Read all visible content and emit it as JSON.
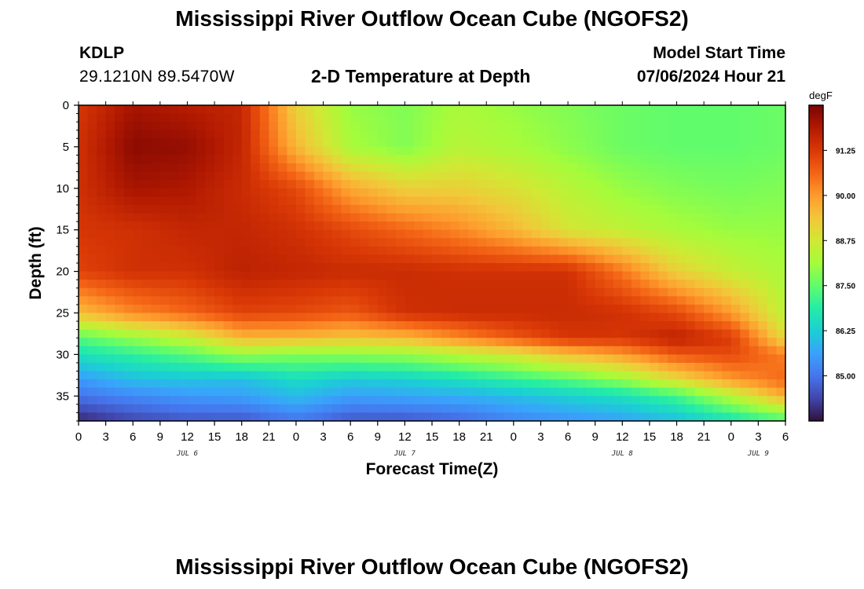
{
  "page": {
    "title": "Mississippi River Outflow Ocean Cube (NGOFS2)",
    "footer_title": "Mississippi River Outflow Ocean Cube (NGOFS2)",
    "station_id": "KDLP",
    "coordinates": "29.1210N  89.5470W",
    "subtitle": "2-D Temperature at Depth",
    "model_start_label": "Model Start Time",
    "model_start_value": "07/06/2024 Hour 21"
  },
  "chart_data": {
    "type": "heatmap",
    "title": "2-D Temperature at Depth",
    "xlabel": "Forecast Time(Z)",
    "ylabel": "Depth (ft)",
    "x_unit": "hours",
    "x_range": [
      0,
      78
    ],
    "x_ticks": [
      "0",
      "3",
      "6",
      "9",
      "12",
      "15",
      "18",
      "21",
      "0",
      "3",
      "6",
      "9",
      "12",
      "15",
      "18",
      "21",
      "0",
      "3",
      "6",
      "9",
      "12",
      "15",
      "18",
      "21",
      "0",
      "3",
      "6"
    ],
    "day_labels": [
      {
        "label": "JUL 6",
        "hour": 12
      },
      {
        "label": "JUL 7",
        "hour": 36
      },
      {
        "label": "JUL 8",
        "hour": 60
      },
      {
        "label": "JUL 9",
        "hour": 75
      }
    ],
    "y_range": [
      0,
      38
    ],
    "y_ticks": [
      0,
      5,
      10,
      15,
      20,
      25,
      30,
      35
    ],
    "y_reversed": true,
    "colorbar": {
      "unit": "degF",
      "range": [
        83.75,
        92.5
      ],
      "ticks": [
        "91.25",
        "90.00",
        "88.75",
        "87.50",
        "86.25",
        "85.00"
      ]
    },
    "grid": "off",
    "legend": "colorbar right",
    "colors": {
      "darkest": "#30123b",
      "blue": "#4465dc",
      "cyan": "#28bbec",
      "green": "#a2fc3c",
      "yellow": "#f5c63a",
      "orange": "#f56918",
      "darkred": "#7a0403"
    },
    "hours": [
      0,
      6,
      12,
      18,
      24,
      30,
      36,
      42,
      48,
      54,
      60,
      66,
      72,
      78
    ],
    "depths_ft": [
      0,
      5,
      10,
      15,
      20,
      25,
      28,
      30,
      33,
      35,
      38
    ],
    "values_degF": [
      [
        91.3,
        92.0,
        91.8,
        91.6,
        89.2,
        88.0,
        87.8,
        88.2,
        88.0,
        87.8,
        87.6,
        87.5,
        87.5,
        87.6
      ],
      [
        91.4,
        92.3,
        92.2,
        91.6,
        89.6,
        88.2,
        87.8,
        88.4,
        88.2,
        87.9,
        87.6,
        87.5,
        87.5,
        87.6
      ],
      [
        91.4,
        92.0,
        91.9,
        91.5,
        91.0,
        89.8,
        89.2,
        89.2,
        88.9,
        88.4,
        88.0,
        87.8,
        87.7,
        87.8
      ],
      [
        91.3,
        91.4,
        91.6,
        91.6,
        91.4,
        91.0,
        90.6,
        90.2,
        89.6,
        88.8,
        88.5,
        88.2,
        88.0,
        88.0
      ],
      [
        91.1,
        91.4,
        91.4,
        91.7,
        91.6,
        91.5,
        91.5,
        91.4,
        91.4,
        91.4,
        90.4,
        89.2,
        88.6,
        88.2
      ],
      [
        89.5,
        90.2,
        90.6,
        91.1,
        91.0,
        90.8,
        91.4,
        91.5,
        91.5,
        91.5,
        91.4,
        91.0,
        90.0,
        88.4
      ],
      [
        87.4,
        88.0,
        88.6,
        89.6,
        89.6,
        89.4,
        89.6,
        90.2,
        90.8,
        91.3,
        91.3,
        91.7,
        91.2,
        89.0
      ],
      [
        86.6,
        87.0,
        87.4,
        88.0,
        87.8,
        87.9,
        88.0,
        88.4,
        88.8,
        89.5,
        90.0,
        90.8,
        91.0,
        90.3
      ],
      [
        85.5,
        86.0,
        86.1,
        86.0,
        86.5,
        86.2,
        86.3,
        86.6,
        87.0,
        87.4,
        88.0,
        89.0,
        90.0,
        90.6
      ],
      [
        85.0,
        85.3,
        85.5,
        85.6,
        86.0,
        85.6,
        85.7,
        85.8,
        86.0,
        86.3,
        86.6,
        87.2,
        88.4,
        89.8
      ],
      [
        84.0,
        84.4,
        84.6,
        84.6,
        85.0,
        84.6,
        84.6,
        84.8,
        85.2,
        85.4,
        85.6,
        86.0,
        86.6,
        87.2
      ]
    ]
  }
}
